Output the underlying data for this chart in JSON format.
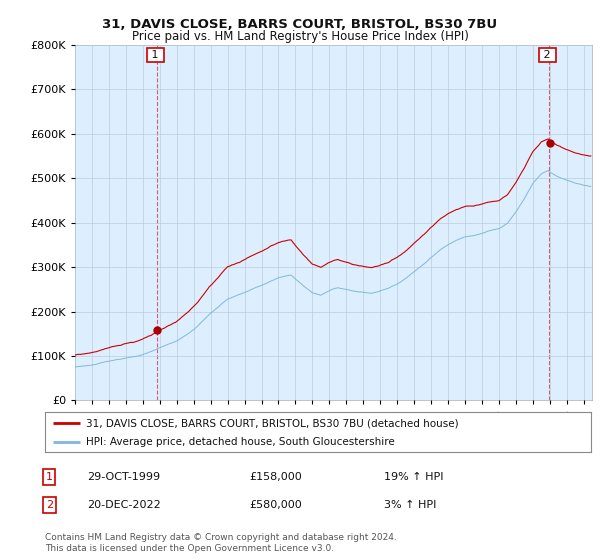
{
  "title": "31, DAVIS CLOSE, BARRS COURT, BRISTOL, BS30 7BU",
  "subtitle": "Price paid vs. HM Land Registry's House Price Index (HPI)",
  "legend_line1": "31, DAVIS CLOSE, BARRS COURT, BRISTOL, BS30 7BU (detached house)",
  "legend_line2": "HPI: Average price, detached house, South Gloucestershire",
  "sale1_label": "1",
  "sale1_date": "29-OCT-1999",
  "sale1_price": "£158,000",
  "sale1_hpi": "19% ↑ HPI",
  "sale2_label": "2",
  "sale2_date": "20-DEC-2022",
  "sale2_price": "£580,000",
  "sale2_hpi": "3% ↑ HPI",
  "footer": "Contains HM Land Registry data © Crown copyright and database right 2024.\nThis data is licensed under the Open Government Licence v3.0.",
  "hpi_color": "#7fb8dc",
  "price_color": "#cc0000",
  "sale_marker_color": "#aa0000",
  "chart_bg_color": "#ddeeff",
  "ylim": [
    0,
    800000
  ],
  "yticks": [
    0,
    100000,
    200000,
    300000,
    400000,
    500000,
    600000,
    700000,
    800000
  ],
  "xlim_start": 1995.0,
  "xlim_end": 2025.5,
  "sale1_x": 1999.83,
  "sale1_y": 158000,
  "sale2_x": 2022.96,
  "sale2_y": 580000,
  "background_color": "#ffffff",
  "grid_color": "#bbccdd"
}
